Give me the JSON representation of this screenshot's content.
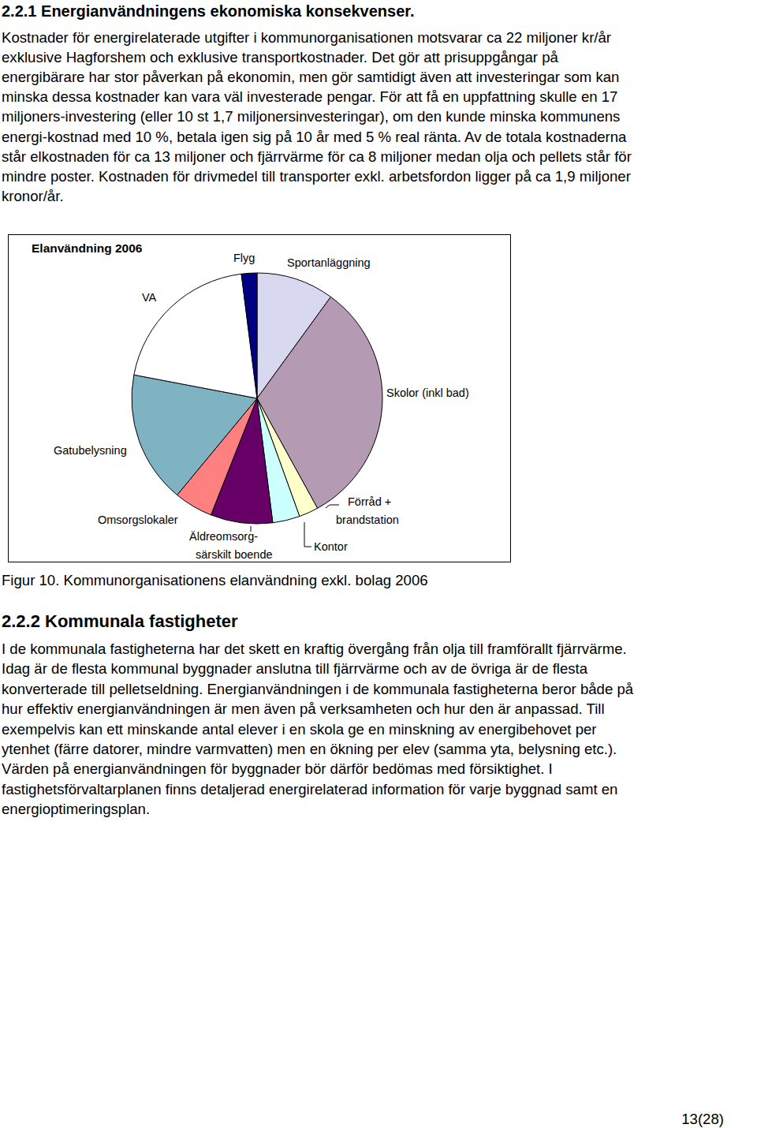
{
  "section_1": {
    "heading": "2.2.1 Energianvändningens ekonomiska konsekvenser.",
    "lines": [
      "Kostnader för energirelaterade utgifter i kommunorganisationen motsvarar ca 22 miljoner kr/år",
      "exklusive Hagforshem och exklusive transportkostnader. Det gör att prisuppgångar på",
      "energibärare har stor påverkan på ekonomin, men gör samtidigt även att investeringar som kan",
      "minska dessa kostnader kan vara väl investerade pengar. För att få en uppfattning skulle en 17",
      "miljoners-investering (eller 10 st 1,7 miljonersinvesteringar), om den kunde minska kommunens",
      "energi-kostnad med 10 %, betala igen sig på 10 år med 5 % real ränta. Av de totala kostnaderna",
      "står elkostnaden för ca 13 miljoner och fjärrvärme för ca 8 miljoner medan olja och pellets står för",
      "mindre poster. Kostnaden för drivmedel till transporter exkl. arbetsfordon ligger på ca 1,9 miljoner",
      "kronor/år."
    ]
  },
  "chart_data": {
    "type": "pie",
    "title": "Elanvändning 2006",
    "categories": [
      "Sportanläggning",
      "Skolor (inkl bad)",
      "Förråd +\nbrandstation",
      "Kontor",
      "Äldreomsorg-\nsärskilt boende",
      "Omsorgslokaler",
      "Gatubelysning",
      "VA",
      "Flyg"
    ],
    "values": [
      10,
      32,
      2.5,
      3.5,
      8,
      5,
      17,
      20,
      2
    ],
    "colors": [
      "#d8d8f0",
      "#b59ab3",
      "#ffffcc",
      "#ccffff",
      "#660066",
      "#ff8080",
      "#7fb3c1",
      "#ffffff",
      "#000080"
    ]
  },
  "caption": "Figur 10. Kommunorganisationens elanvändning exkl. bolag 2006",
  "section_2": {
    "heading": "2.2.2 Kommunala fastigheter",
    "lines": [
      "I de kommunala fastigheterna har det skett en kraftig övergång från olja till framförallt fjärrvärme.",
      "Idag är de flesta kommunal byggnader anslutna till fjärrvärme och av de övriga är de flesta",
      "konverterade till pelletseldning. Energianvändningen i de kommunala fastigheterna beror både på",
      "hur effektiv energianvändningen är men även på verksamheten och hur den är anpassad. Till",
      "exempelvis kan ett minskande antal elever i en skola ge en minskning av energibehovet per",
      "ytenhet (färre datorer, mindre varmvatten) men en ökning per elev (samma yta, belysning etc.).",
      "Värden på energianvändningen för byggnader bör därför bedömas med försiktighet. I",
      "fastighetsförvaltarplanen finns detaljerad energirelaterad information för varje byggnad samt en",
      "energioptimeringsplan."
    ]
  },
  "page_number": "13(28)"
}
